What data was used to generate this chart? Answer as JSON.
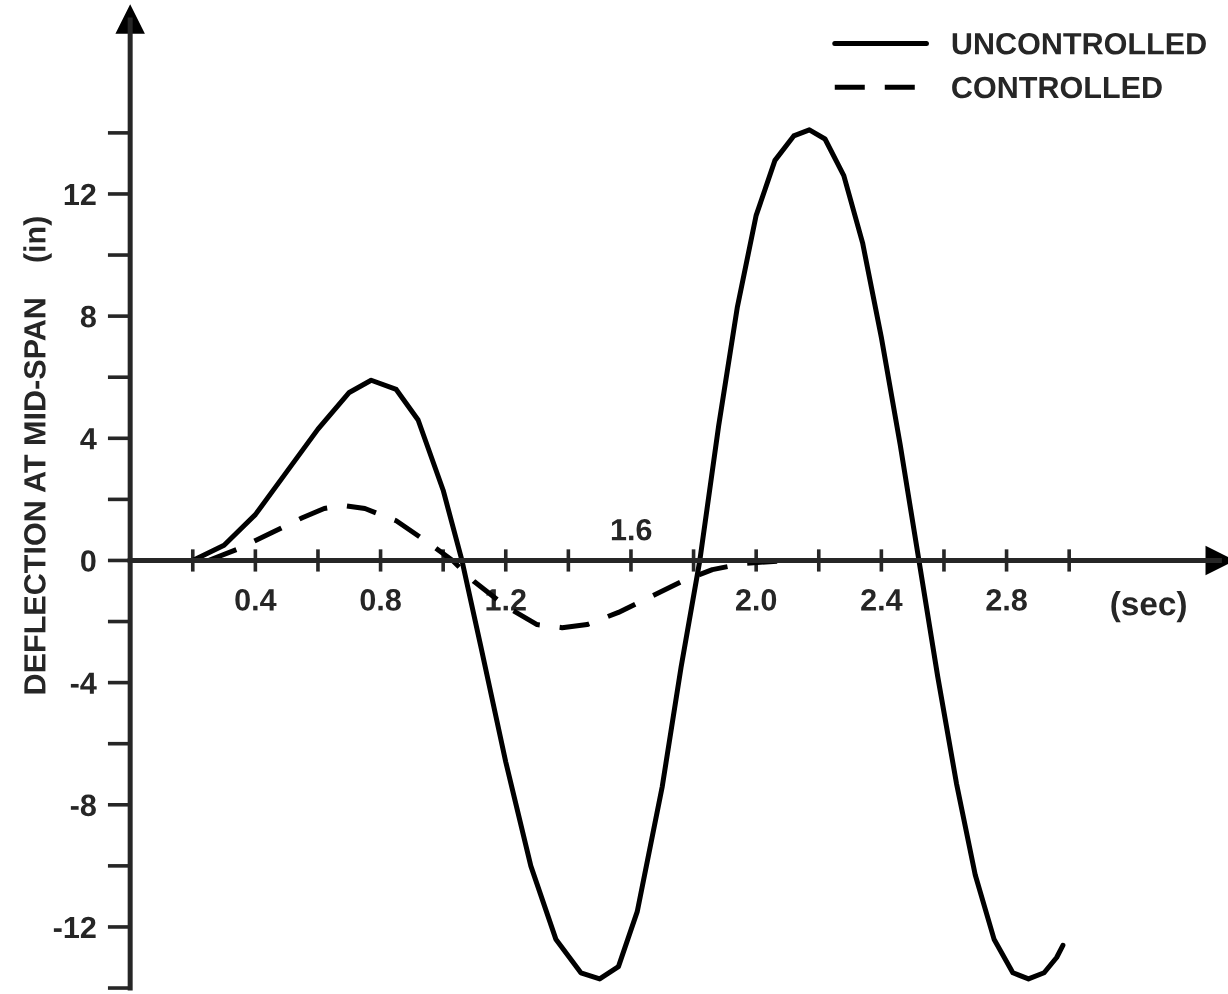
{
  "chart_data": {
    "type": "line",
    "xlabel": "(sec)",
    "ylabel": "DEFLECTION AT MID-SPAN    (in)",
    "xlim": [
      0,
      3.48
    ],
    "ylim": [
      -14,
      17.7
    ],
    "xticks": [
      {
        "value": 0.2,
        "label": null
      },
      0.4,
      {
        "value": 0.6,
        "label": null
      },
      0.8,
      {
        "value": 1.0,
        "label": null
      },
      1.2,
      {
        "value": 1.4,
        "label": null
      },
      {
        "value": 1.6,
        "label": null
      },
      {
        "value": 1.8,
        "label": null
      },
      {
        "value": 2.0,
        "label": "2.0"
      },
      {
        "value": 2.2,
        "label": null
      },
      2.4,
      {
        "value": 2.6,
        "label": null
      },
      2.8,
      {
        "value": 3.0,
        "label": null
      }
    ],
    "yticks": [
      {
        "value": -14,
        "label": null
      },
      -12,
      {
        "value": -10,
        "label": null
      },
      -8,
      {
        "value": -6,
        "label": null
      },
      -4,
      {
        "value": -2,
        "label": null
      },
      0,
      {
        "value": 2,
        "label": null
      },
      4,
      {
        "value": 6,
        "label": null
      },
      8,
      {
        "value": 10,
        "label": null
      },
      12,
      {
        "value": 14,
        "label": null
      }
    ],
    "legend": "top right",
    "grid": false,
    "annotations": [
      "1.6"
    ],
    "series": [
      {
        "name": "UNCONTROLLED",
        "color": "#000000",
        "line_style": "solid",
        "x": [
          0.2,
          0.3,
          0.4,
          0.5,
          0.6,
          0.7,
          0.77,
          0.85,
          0.92,
          1.0,
          1.06,
          1.12,
          1.2,
          1.28,
          1.36,
          1.44,
          1.5,
          1.56,
          1.62,
          1.7,
          1.76,
          1.82,
          1.88,
          1.94,
          2.0,
          2.06,
          2.12,
          2.17,
          2.22,
          2.28,
          2.34,
          2.4,
          2.46,
          2.52,
          2.58,
          2.64,
          2.7,
          2.76,
          2.82,
          2.87,
          2.92,
          2.96,
          2.98
        ],
        "values": [
          0,
          0.5,
          1.5,
          2.9,
          4.3,
          5.5,
          5.9,
          5.6,
          4.6,
          2.3,
          0,
          -2.8,
          -6.6,
          -10,
          -12.4,
          -13.5,
          -13.7,
          -13.3,
          -11.5,
          -7.4,
          -3.5,
          0,
          4.4,
          8.3,
          11.3,
          13.1,
          13.9,
          14.1,
          13.8,
          12.6,
          10.4,
          7.3,
          3.8,
          0,
          -3.8,
          -7.3,
          -10.3,
          -12.4,
          -13.5,
          -13.7,
          -13.5,
          -13.0,
          -12.6
        ]
      },
      {
        "name": "CONTROLLED",
        "color": "#000000",
        "line_style": "dashed",
        "x": [
          0.25,
          0.35,
          0.45,
          0.55,
          0.62,
          0.68,
          0.75,
          0.85,
          0.95,
          1.03,
          1.1,
          1.2,
          1.3,
          1.38,
          1.46,
          1.56,
          1.66,
          1.76,
          1.86,
          1.96,
          2.1,
          2.9
        ],
        "values": [
          0,
          0.4,
          0.9,
          1.4,
          1.7,
          1.8,
          1.7,
          1.3,
          0.6,
          0,
          -0.7,
          -1.5,
          -2.1,
          -2.2,
          -2.1,
          -1.7,
          -1.2,
          -0.7,
          -0.3,
          -0.1,
          0,
          0
        ]
      }
    ]
  }
}
